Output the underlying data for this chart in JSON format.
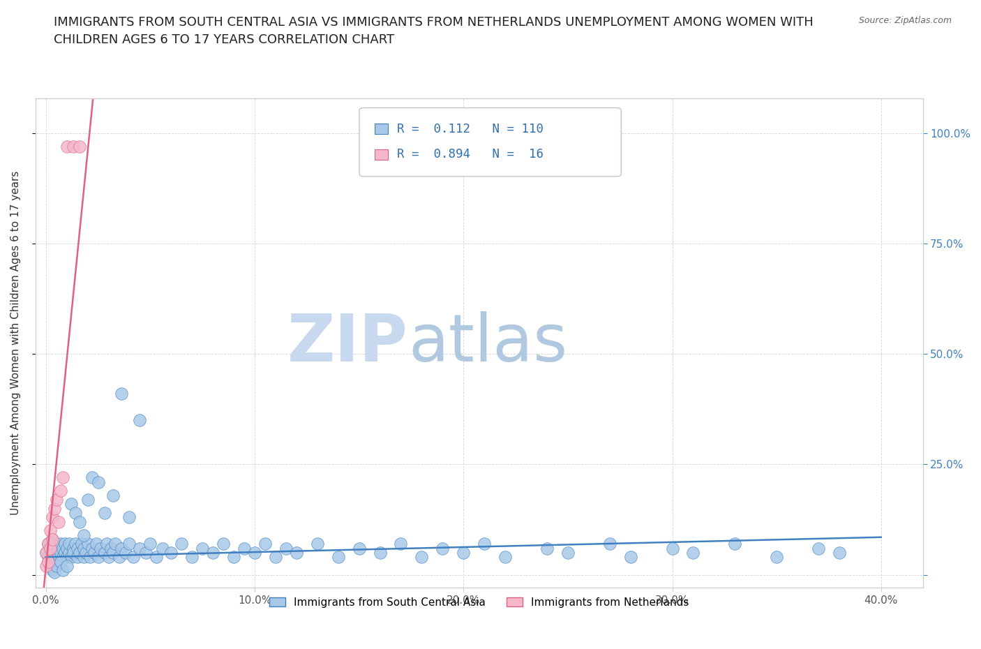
{
  "title_line1": "IMMIGRANTS FROM SOUTH CENTRAL ASIA VS IMMIGRANTS FROM NETHERLANDS UNEMPLOYMENT AMONG WOMEN WITH",
  "title_line2": "CHILDREN AGES 6 TO 17 YEARS CORRELATION CHART",
  "source": "Source: ZipAtlas.com",
  "ylabel": "Unemployment Among Women with Children Ages 6 to 17 years",
  "xlim": [
    -0.005,
    0.42
  ],
  "ylim": [
    -0.03,
    1.08
  ],
  "legend_labels": [
    "Immigrants from South Central Asia",
    "Immigrants from Netherlands"
  ],
  "R_blue": 0.112,
  "N_blue": 110,
  "R_pink": 0.894,
  "N_pink": 16,
  "color_blue": "#a8c8e8",
  "color_pink": "#f5b8cb",
  "line_blue": "#4080c0",
  "line_pink": "#e06080",
  "background_color": "#ffffff",
  "grid_color": "#d0d0d0",
  "title_color": "#222222",
  "watermark_zip": "ZIP",
  "watermark_atlas": "atlas",
  "watermark_color_zip": "#c8d8ee",
  "watermark_color_atlas": "#b0c8e0",
  "x_tick_vals": [
    0.0,
    0.1,
    0.2,
    0.3,
    0.4
  ],
  "x_tick_labels": [
    "0.0%",
    "10.0%",
    "20.0%",
    "30.0%",
    "40.0%"
  ],
  "y_tick_vals": [
    0.0,
    0.25,
    0.5,
    0.75,
    1.0
  ],
  "y_tick_labels_right": [
    "",
    "25.0%",
    "50.0%",
    "75.0%",
    "100.0%"
  ],
  "blue_x": [
    0.0,
    0.001,
    0.001,
    0.002,
    0.002,
    0.003,
    0.003,
    0.004,
    0.004,
    0.005,
    0.005,
    0.006,
    0.006,
    0.007,
    0.007,
    0.008,
    0.008,
    0.009,
    0.009,
    0.01,
    0.01,
    0.011,
    0.011,
    0.012,
    0.013,
    0.013,
    0.014,
    0.015,
    0.015,
    0.016,
    0.017,
    0.018,
    0.018,
    0.019,
    0.02,
    0.021,
    0.022,
    0.023,
    0.024,
    0.025,
    0.026,
    0.028,
    0.029,
    0.03,
    0.031,
    0.032,
    0.033,
    0.035,
    0.036,
    0.038,
    0.04,
    0.042,
    0.045,
    0.048,
    0.05,
    0.053,
    0.056,
    0.06,
    0.065,
    0.07,
    0.075,
    0.08,
    0.085,
    0.09,
    0.095,
    0.1,
    0.105,
    0.11,
    0.115,
    0.12,
    0.13,
    0.14,
    0.15,
    0.16,
    0.17,
    0.18,
    0.19,
    0.2,
    0.21,
    0.22,
    0.24,
    0.25,
    0.27,
    0.28,
    0.3,
    0.31,
    0.33,
    0.35,
    0.37,
    0.38,
    0.001,
    0.002,
    0.003,
    0.004,
    0.005,
    0.007,
    0.008,
    0.01,
    0.012,
    0.014,
    0.016,
    0.018,
    0.02,
    0.022,
    0.025,
    0.028,
    0.032,
    0.036,
    0.04,
    0.045
  ],
  "blue_y": [
    0.05,
    0.04,
    0.07,
    0.03,
    0.06,
    0.05,
    0.08,
    0.04,
    0.06,
    0.05,
    0.07,
    0.04,
    0.06,
    0.05,
    0.07,
    0.04,
    0.06,
    0.05,
    0.07,
    0.04,
    0.06,
    0.05,
    0.07,
    0.04,
    0.06,
    0.05,
    0.07,
    0.04,
    0.06,
    0.05,
    0.07,
    0.04,
    0.06,
    0.05,
    0.07,
    0.04,
    0.06,
    0.05,
    0.07,
    0.04,
    0.06,
    0.05,
    0.07,
    0.04,
    0.06,
    0.05,
    0.07,
    0.04,
    0.06,
    0.05,
    0.07,
    0.04,
    0.06,
    0.05,
    0.07,
    0.04,
    0.06,
    0.05,
    0.07,
    0.04,
    0.06,
    0.05,
    0.07,
    0.04,
    0.06,
    0.05,
    0.07,
    0.04,
    0.06,
    0.05,
    0.07,
    0.04,
    0.06,
    0.05,
    0.07,
    0.04,
    0.06,
    0.05,
    0.07,
    0.04,
    0.06,
    0.05,
    0.07,
    0.04,
    0.06,
    0.05,
    0.07,
    0.04,
    0.06,
    0.05,
    0.03,
    0.02,
    0.01,
    0.005,
    0.02,
    0.03,
    0.01,
    0.02,
    0.16,
    0.14,
    0.12,
    0.09,
    0.17,
    0.22,
    0.21,
    0.14,
    0.18,
    0.41,
    0.13,
    0.35
  ],
  "pink_x": [
    0.0,
    0.0,
    0.001,
    0.001,
    0.002,
    0.002,
    0.003,
    0.003,
    0.004,
    0.005,
    0.006,
    0.007,
    0.008,
    0.01,
    0.013,
    0.016
  ],
  "pink_y": [
    0.02,
    0.05,
    0.03,
    0.07,
    0.06,
    0.1,
    0.08,
    0.13,
    0.15,
    0.17,
    0.12,
    0.19,
    0.22,
    0.97,
    0.97,
    0.97
  ],
  "blue_trend_x": [
    0.0,
    0.4
  ],
  "blue_trend_y": [
    0.04,
    0.085
  ],
  "pink_trend_x": [
    -0.001,
    0.023
  ],
  "pink_trend_y": [
    -0.03,
    1.1
  ]
}
